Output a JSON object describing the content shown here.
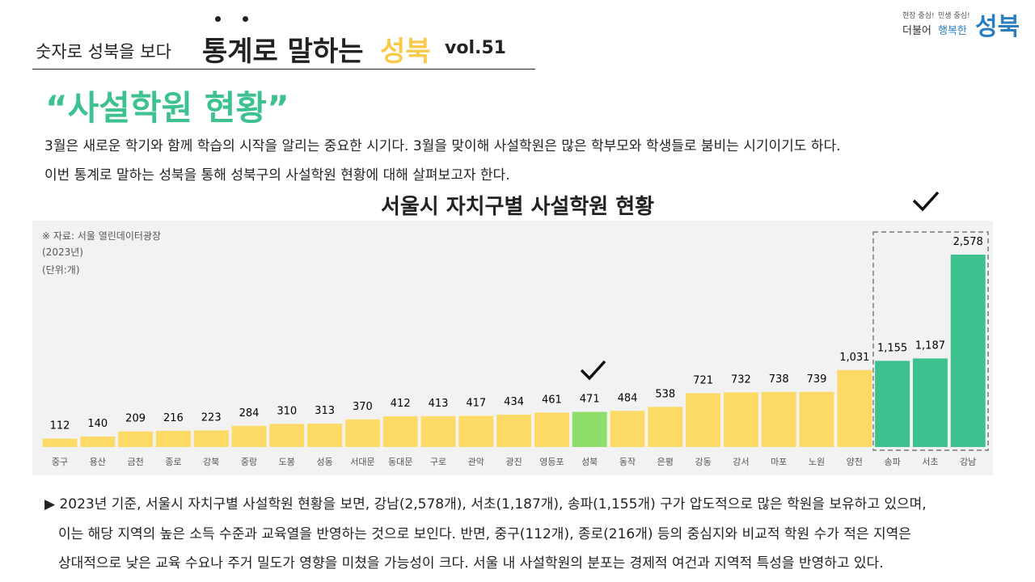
{
  "header": {
    "series_label": "숫자로 성북을 보다",
    "title_main": "통계로 말하는",
    "title_accent": "성북",
    "volume": "vol.51"
  },
  "logo": {
    "slogan_1": "현장 중심!",
    "slogan_2": "민생 중심!",
    "word_1": "더불어",
    "word_2": "행복한",
    "brand": "성북"
  },
  "headline": "“사설학원 현황”",
  "intro": [
    "3월은 새로운 학기와 함께 학습의 시작을 알리는 중요한 시기다. 3월을 맞이해 사설학원은 많은 학부모와 학생들로 붐비는 시기이기도 하다.",
    "이번 통계로 말하는 성북을 통해 성북구의 사설학원 현황에 대해 살펴보고자 한다."
  ],
  "chart_data": {
    "type": "bar",
    "title": "서울시 자치구별 사설학원 현황",
    "notes": [
      "※ 자료: 서울 열린데이터광장",
      "(2023년)",
      "(단위:개)"
    ],
    "categories": [
      "중구",
      "용산",
      "금천",
      "종로",
      "강북",
      "중랑",
      "도봉",
      "성동",
      "서대문",
      "동대문",
      "구로",
      "관악",
      "광진",
      "영등포",
      "성북",
      "동작",
      "은평",
      "강동",
      "강서",
      "마포",
      "노원",
      "양천",
      "송파",
      "서초",
      "강남"
    ],
    "values": [
      112,
      140,
      209,
      216,
      223,
      284,
      310,
      313,
      370,
      412,
      413,
      417,
      434,
      461,
      471,
      484,
      538,
      721,
      732,
      738,
      739,
      1031,
      1155,
      1187,
      2578
    ],
    "value_labels": [
      "112",
      "140",
      "209",
      "216",
      "223",
      "284",
      "310",
      "313",
      "370",
      "412",
      "413",
      "417",
      "434",
      "461",
      "471",
      "484",
      "538",
      "721",
      "732",
      "738",
      "739",
      "1,031",
      "1,155",
      "1,187",
      "2,578"
    ],
    "colors": [
      "#fdd966",
      "#fdd966",
      "#fdd966",
      "#fdd966",
      "#fdd966",
      "#fdd966",
      "#fdd966",
      "#fdd966",
      "#fdd966",
      "#fdd966",
      "#fdd966",
      "#fdd966",
      "#fdd966",
      "#fdd966",
      "#8fdd6b",
      "#fdd966",
      "#fdd966",
      "#fdd966",
      "#fdd966",
      "#fdd966",
      "#fdd966",
      "#fdd966",
      "#3dc18f",
      "#3dc18f",
      "#3dc18f"
    ]
  },
  "summary": [
    "▶ 2023년 기준, 서울시 자치구별 사설학원 현황을 보면, 강남(2,578개), 서초(1,187개), 송파(1,155개) 구가 압도적으로 많은 학원을 보유하고 있으며,",
    "이는 해당 지역의 높은 소득 수준과 교육열을 반영하는 것으로 보인다. 반면, 중구(112개), 종로(216개) 등의 중심지와 비교적 학원 수가 적은 지역은",
    "상대적으로 낮은 교육 수요나 주거 밀도가 영향을 미쳤을 가능성이 크다. 서울 내 사설학원의 분포는 경제적 여건과 지역적 특성을 반영하고 있다."
  ]
}
